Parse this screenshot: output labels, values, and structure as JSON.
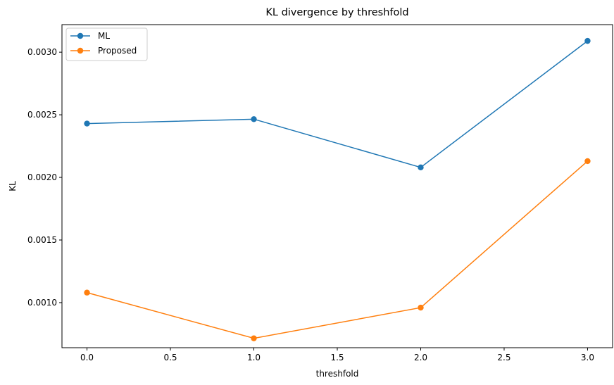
{
  "chart_data": {
    "type": "line",
    "title": "KL divergence by threshfold",
    "xlabel": "threshfold",
    "ylabel": "KL",
    "xlim": [
      -0.15,
      3.15
    ],
    "ylim": [
      0.00064,
      0.00322
    ],
    "x_ticks": [
      0.0,
      0.5,
      1.0,
      1.5,
      2.0,
      2.5,
      3.0
    ],
    "x_tick_labels": [
      "0.0",
      "0.5",
      "1.0",
      "1.5",
      "2.0",
      "2.5",
      "3.0"
    ],
    "y_ticks": [
      0.001,
      0.0015,
      0.002,
      0.0025,
      0.003
    ],
    "y_tick_labels": [
      "0.0010",
      "0.0015",
      "0.0020",
      "0.0025",
      "0.0030"
    ],
    "grid": false,
    "legend_position": "top-left",
    "series": [
      {
        "name": "ML",
        "color": "#1f77b4",
        "marker": "circle",
        "x": [
          0,
          1,
          2,
          3
        ],
        "y": [
          0.00243,
          0.002465,
          0.00208,
          0.00309
        ]
      },
      {
        "name": "Proposed",
        "color": "#ff7f0e",
        "marker": "circle",
        "x": [
          0,
          1,
          2,
          3
        ],
        "y": [
          0.00108,
          0.000715,
          0.00096,
          0.00213
        ]
      }
    ]
  }
}
